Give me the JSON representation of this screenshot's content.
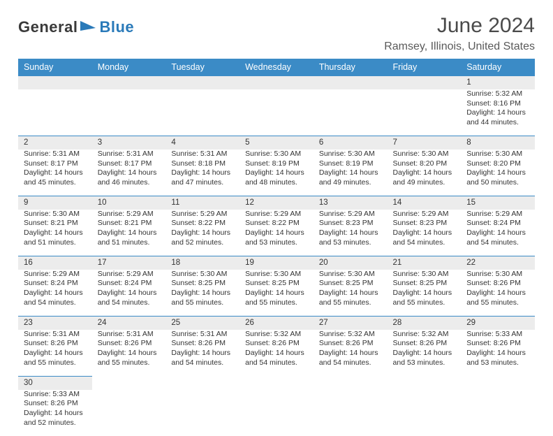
{
  "brand": {
    "part1": "General",
    "part2": "Blue",
    "logo_color": "#2a7ab9",
    "text_color": "#3a3a3a"
  },
  "header": {
    "month_title": "June 2024",
    "location": "Ramsey, Illinois, United States"
  },
  "style": {
    "header_bg": "#3b8bc6",
    "header_fg": "#ffffff",
    "daynum_bg": "#ececec",
    "rule_color": "#3b8bc6",
    "body_font_size": 10.5,
    "daynum_font_size": 11.5,
    "title_font_size": 30,
    "location_font_size": 16
  },
  "weekdays": [
    "Sunday",
    "Monday",
    "Tuesday",
    "Wednesday",
    "Thursday",
    "Friday",
    "Saturday"
  ],
  "weeks": [
    [
      null,
      null,
      null,
      null,
      null,
      null,
      {
        "n": "1",
        "sr": "Sunrise: 5:32 AM",
        "ss": "Sunset: 8:16 PM",
        "d1": "Daylight: 14 hours",
        "d2": "and 44 minutes."
      }
    ],
    [
      {
        "n": "2",
        "sr": "Sunrise: 5:31 AM",
        "ss": "Sunset: 8:17 PM",
        "d1": "Daylight: 14 hours",
        "d2": "and 45 minutes."
      },
      {
        "n": "3",
        "sr": "Sunrise: 5:31 AM",
        "ss": "Sunset: 8:17 PM",
        "d1": "Daylight: 14 hours",
        "d2": "and 46 minutes."
      },
      {
        "n": "4",
        "sr": "Sunrise: 5:31 AM",
        "ss": "Sunset: 8:18 PM",
        "d1": "Daylight: 14 hours",
        "d2": "and 47 minutes."
      },
      {
        "n": "5",
        "sr": "Sunrise: 5:30 AM",
        "ss": "Sunset: 8:19 PM",
        "d1": "Daylight: 14 hours",
        "d2": "and 48 minutes."
      },
      {
        "n": "6",
        "sr": "Sunrise: 5:30 AM",
        "ss": "Sunset: 8:19 PM",
        "d1": "Daylight: 14 hours",
        "d2": "and 49 minutes."
      },
      {
        "n": "7",
        "sr": "Sunrise: 5:30 AM",
        "ss": "Sunset: 8:20 PM",
        "d1": "Daylight: 14 hours",
        "d2": "and 49 minutes."
      },
      {
        "n": "8",
        "sr": "Sunrise: 5:30 AM",
        "ss": "Sunset: 8:20 PM",
        "d1": "Daylight: 14 hours",
        "d2": "and 50 minutes."
      }
    ],
    [
      {
        "n": "9",
        "sr": "Sunrise: 5:30 AM",
        "ss": "Sunset: 8:21 PM",
        "d1": "Daylight: 14 hours",
        "d2": "and 51 minutes."
      },
      {
        "n": "10",
        "sr": "Sunrise: 5:29 AM",
        "ss": "Sunset: 8:21 PM",
        "d1": "Daylight: 14 hours",
        "d2": "and 51 minutes."
      },
      {
        "n": "11",
        "sr": "Sunrise: 5:29 AM",
        "ss": "Sunset: 8:22 PM",
        "d1": "Daylight: 14 hours",
        "d2": "and 52 minutes."
      },
      {
        "n": "12",
        "sr": "Sunrise: 5:29 AM",
        "ss": "Sunset: 8:22 PM",
        "d1": "Daylight: 14 hours",
        "d2": "and 53 minutes."
      },
      {
        "n": "13",
        "sr": "Sunrise: 5:29 AM",
        "ss": "Sunset: 8:23 PM",
        "d1": "Daylight: 14 hours",
        "d2": "and 53 minutes."
      },
      {
        "n": "14",
        "sr": "Sunrise: 5:29 AM",
        "ss": "Sunset: 8:23 PM",
        "d1": "Daylight: 14 hours",
        "d2": "and 54 minutes."
      },
      {
        "n": "15",
        "sr": "Sunrise: 5:29 AM",
        "ss": "Sunset: 8:24 PM",
        "d1": "Daylight: 14 hours",
        "d2": "and 54 minutes."
      }
    ],
    [
      {
        "n": "16",
        "sr": "Sunrise: 5:29 AM",
        "ss": "Sunset: 8:24 PM",
        "d1": "Daylight: 14 hours",
        "d2": "and 54 minutes."
      },
      {
        "n": "17",
        "sr": "Sunrise: 5:29 AM",
        "ss": "Sunset: 8:24 PM",
        "d1": "Daylight: 14 hours",
        "d2": "and 54 minutes."
      },
      {
        "n": "18",
        "sr": "Sunrise: 5:30 AM",
        "ss": "Sunset: 8:25 PM",
        "d1": "Daylight: 14 hours",
        "d2": "and 55 minutes."
      },
      {
        "n": "19",
        "sr": "Sunrise: 5:30 AM",
        "ss": "Sunset: 8:25 PM",
        "d1": "Daylight: 14 hours",
        "d2": "and 55 minutes."
      },
      {
        "n": "20",
        "sr": "Sunrise: 5:30 AM",
        "ss": "Sunset: 8:25 PM",
        "d1": "Daylight: 14 hours",
        "d2": "and 55 minutes."
      },
      {
        "n": "21",
        "sr": "Sunrise: 5:30 AM",
        "ss": "Sunset: 8:25 PM",
        "d1": "Daylight: 14 hours",
        "d2": "and 55 minutes."
      },
      {
        "n": "22",
        "sr": "Sunrise: 5:30 AM",
        "ss": "Sunset: 8:26 PM",
        "d1": "Daylight: 14 hours",
        "d2": "and 55 minutes."
      }
    ],
    [
      {
        "n": "23",
        "sr": "Sunrise: 5:31 AM",
        "ss": "Sunset: 8:26 PM",
        "d1": "Daylight: 14 hours",
        "d2": "and 55 minutes."
      },
      {
        "n": "24",
        "sr": "Sunrise: 5:31 AM",
        "ss": "Sunset: 8:26 PM",
        "d1": "Daylight: 14 hours",
        "d2": "and 55 minutes."
      },
      {
        "n": "25",
        "sr": "Sunrise: 5:31 AM",
        "ss": "Sunset: 8:26 PM",
        "d1": "Daylight: 14 hours",
        "d2": "and 54 minutes."
      },
      {
        "n": "26",
        "sr": "Sunrise: 5:32 AM",
        "ss": "Sunset: 8:26 PM",
        "d1": "Daylight: 14 hours",
        "d2": "and 54 minutes."
      },
      {
        "n": "27",
        "sr": "Sunrise: 5:32 AM",
        "ss": "Sunset: 8:26 PM",
        "d1": "Daylight: 14 hours",
        "d2": "and 54 minutes."
      },
      {
        "n": "28",
        "sr": "Sunrise: 5:32 AM",
        "ss": "Sunset: 8:26 PM",
        "d1": "Daylight: 14 hours",
        "d2": "and 53 minutes."
      },
      {
        "n": "29",
        "sr": "Sunrise: 5:33 AM",
        "ss": "Sunset: 8:26 PM",
        "d1": "Daylight: 14 hours",
        "d2": "and 53 minutes."
      }
    ],
    [
      {
        "n": "30",
        "sr": "Sunrise: 5:33 AM",
        "ss": "Sunset: 8:26 PM",
        "d1": "Daylight: 14 hours",
        "d2": "and 52 minutes."
      },
      null,
      null,
      null,
      null,
      null,
      null
    ]
  ]
}
